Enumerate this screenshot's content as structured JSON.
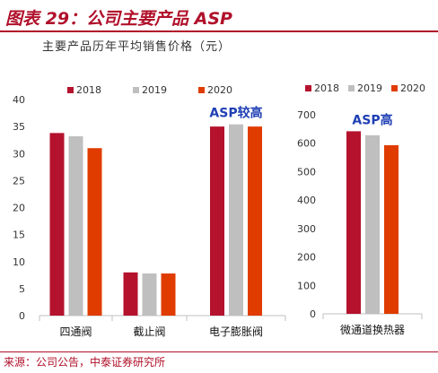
{
  "header": {
    "title": "图表 29：公司主要产品 ASP"
  },
  "subtitle": "主要产品历年平均销售价格（元）",
  "source": "来源：公司公告，中泰证券研究所",
  "chart_data": [
    {
      "type": "bar",
      "categories": [
        "四通阀",
        "截止阀",
        "电子膨胀阀"
      ],
      "series": [
        {
          "name": "2018",
          "values": [
            33.8,
            8.0,
            35.0
          ],
          "color": "#b5122e"
        },
        {
          "name": "2019",
          "values": [
            33.2,
            7.8,
            35.4
          ],
          "color": "#bfbfbf"
        },
        {
          "name": "2020",
          "values": [
            31.0,
            7.8,
            35.0
          ],
          "color": "#e03c00"
        }
      ],
      "yticks": [
        0,
        5,
        10,
        15,
        20,
        25,
        30,
        35,
        40
      ],
      "ylim": [
        0,
        40
      ],
      "annotation": {
        "text": "ASP较高",
        "category": "电子膨胀阀"
      },
      "legend": "top"
    },
    {
      "type": "bar",
      "categories": [
        "微通道换热器"
      ],
      "series": [
        {
          "name": "2018",
          "values": [
            642
          ],
          "color": "#b5122e"
        },
        {
          "name": "2019",
          "values": [
            628
          ],
          "color": "#bfbfbf"
        },
        {
          "name": "2020",
          "values": [
            593
          ],
          "color": "#e03c00"
        }
      ],
      "yticks": [
        0,
        100,
        200,
        300,
        400,
        500,
        600,
        700
      ],
      "ylim": [
        0,
        700
      ],
      "annotation": {
        "text": "ASP高",
        "category": "微通道换热器"
      },
      "legend": "top"
    }
  ]
}
